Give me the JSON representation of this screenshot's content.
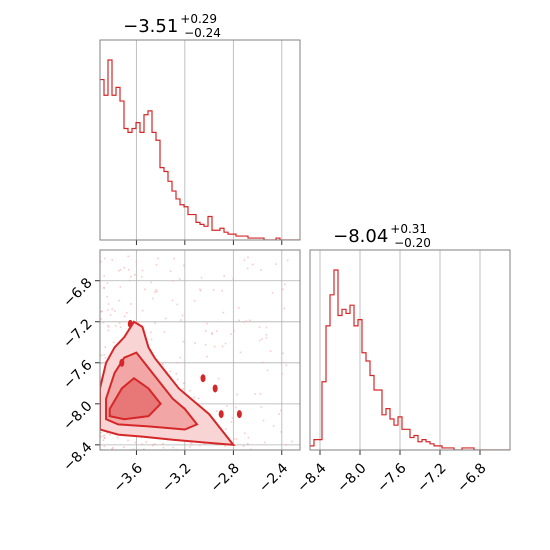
{
  "colors": {
    "series": "#d62728",
    "grid": "#b0b0b0",
    "frame": "#808080"
  },
  "chart_data": [
    {
      "type": "histogram",
      "panel": "top-left",
      "title": {
        "value": "−3.51",
        "upper": "+0.29",
        "lower": "−0.24"
      },
      "xlim": [
        -3.9,
        -2.25
      ],
      "x_ticks": [
        -3.6,
        -3.2,
        -2.8,
        -2.4
      ],
      "grid": true,
      "bin_start": -3.9,
      "bin_width": 0.033,
      "counts": [
        0.82,
        0.74,
        0.92,
        0.74,
        0.78,
        0.71,
        0.57,
        0.55,
        0.57,
        0.6,
        0.55,
        0.64,
        0.66,
        0.55,
        0.51,
        0.37,
        0.35,
        0.3,
        0.25,
        0.21,
        0.18,
        0.17,
        0.13,
        0.13,
        0.09,
        0.08,
        0.07,
        0.12,
        0.05,
        0.05,
        0.06,
        0.04,
        0.03,
        0.03,
        0.02,
        0.02,
        0.02,
        0.01,
        0.01,
        0.01,
        0.01,
        0.0,
        0.0,
        0.0,
        0.01,
        0.0,
        0.0,
        0.0,
        0.0,
        0.0
      ]
    },
    {
      "type": "contour",
      "panel": "bottom-left",
      "xlim": [
        -3.9,
        -2.25
      ],
      "ylim": [
        -8.45,
        -6.5
      ],
      "x_ticks": [
        -3.6,
        -3.2,
        -2.8,
        -2.4
      ],
      "y_ticks": [
        -6.8,
        -7.2,
        -7.6,
        -8.0,
        -8.4
      ],
      "x_tick_labels": [
        "−3.6",
        "−3.2",
        "−2.8",
        "−2.4"
      ],
      "y_tick_labels": [
        "−6.8",
        "−7.2",
        "−7.6",
        "−8.0",
        "−8.4"
      ],
      "grid": true,
      "outer_contour": [
        [
          -3.9,
          -7.85
        ],
        [
          -3.85,
          -7.6
        ],
        [
          -3.78,
          -7.45
        ],
        [
          -3.7,
          -7.35
        ],
        [
          -3.62,
          -7.2
        ],
        [
          -3.55,
          -7.25
        ],
        [
          -3.5,
          -7.45
        ],
        [
          -3.45,
          -7.55
        ],
        [
          -3.35,
          -7.7
        ],
        [
          -3.25,
          -7.85
        ],
        [
          -3.15,
          -7.95
        ],
        [
          -3.0,
          -8.1
        ],
        [
          -2.9,
          -8.25
        ],
        [
          -2.8,
          -8.4
        ],
        [
          -3.0,
          -8.38
        ],
        [
          -3.3,
          -8.35
        ],
        [
          -3.55,
          -8.32
        ],
        [
          -3.75,
          -8.3
        ],
        [
          -3.9,
          -8.25
        ]
      ],
      "inner_contour": [
        [
          -3.85,
          -7.95
        ],
        [
          -3.78,
          -7.7
        ],
        [
          -3.7,
          -7.55
        ],
        [
          -3.6,
          -7.5
        ],
        [
          -3.5,
          -7.65
        ],
        [
          -3.4,
          -7.8
        ],
        [
          -3.3,
          -7.95
        ],
        [
          -3.2,
          -8.05
        ],
        [
          -3.1,
          -8.2
        ],
        [
          -3.2,
          -8.25
        ],
        [
          -3.5,
          -8.22
        ],
        [
          -3.75,
          -8.2
        ],
        [
          -3.85,
          -8.15
        ]
      ],
      "core_contour": [
        [
          -3.82,
          -8.05
        ],
        [
          -3.72,
          -7.85
        ],
        [
          -3.62,
          -7.75
        ],
        [
          -3.5,
          -7.85
        ],
        [
          -3.4,
          -8.0
        ],
        [
          -3.5,
          -8.12
        ],
        [
          -3.7,
          -8.15
        ],
        [
          -3.82,
          -8.12
        ]
      ],
      "islands": [
        [
          -3.65,
          -7.22
        ],
        [
          -3.72,
          -7.6
        ],
        [
          -3.05,
          -7.75
        ],
        [
          -2.95,
          -7.85
        ],
        [
          -2.9,
          -8.1
        ],
        [
          -2.75,
          -8.1
        ]
      ]
    },
    {
      "type": "histogram",
      "panel": "bottom-right",
      "title": {
        "value": "−8.04",
        "upper": "+0.31",
        "lower": "−0.20"
      },
      "xlim": [
        -8.5,
        -6.5
      ],
      "x_ticks": [
        -8.4,
        -8.0,
        -7.6,
        -7.2,
        -6.8
      ],
      "x_tick_labels": [
        "−8.4",
        "−8.0",
        "−7.6",
        "−7.2",
        "−6.8"
      ],
      "grid": true,
      "bin_start": -8.5,
      "bin_width": 0.04,
      "counts": [
        0.02,
        0.05,
        0.05,
        0.33,
        0.6,
        0.75,
        0.87,
        0.65,
        0.68,
        0.66,
        0.7,
        0.6,
        0.63,
        0.47,
        0.43,
        0.36,
        0.29,
        0.29,
        0.17,
        0.2,
        0.15,
        0.12,
        0.16,
        0.1,
        0.1,
        0.06,
        0.07,
        0.04,
        0.05,
        0.04,
        0.03,
        0.02,
        0.02,
        0.01,
        0.01,
        0.01,
        0.0,
        0.0,
        0.01,
        0.01,
        0.01,
        0.0,
        0.0,
        0.0,
        0.0,
        0.0,
        0.0,
        0.0,
        0.0,
        0.0
      ]
    }
  ]
}
